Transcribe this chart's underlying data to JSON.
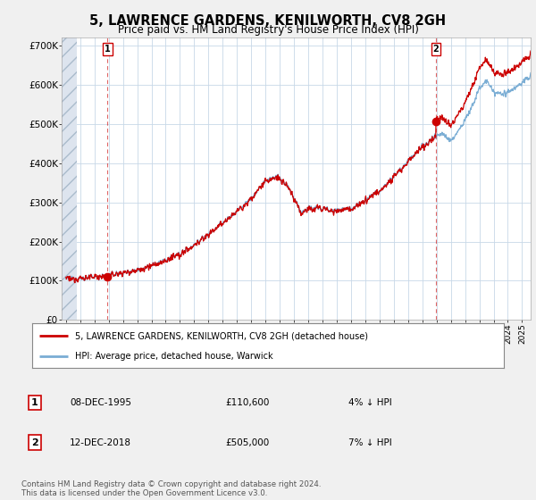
{
  "title": "5, LAWRENCE GARDENS, KENILWORTH, CV8 2GH",
  "subtitle": "Price paid vs. HM Land Registry's House Price Index (HPI)",
  "background_color": "#f0f0f0",
  "plot_bg_color": "#ffffff",
  "legend_label_red": "5, LAWRENCE GARDENS, KENILWORTH, CV8 2GH (detached house)",
  "legend_label_blue": "HPI: Average price, detached house, Warwick",
  "annotation1_label": "1",
  "annotation1_date": "08-DEC-1995",
  "annotation1_price": "£110,600",
  "annotation1_hpi": "4% ↓ HPI",
  "annotation2_label": "2",
  "annotation2_date": "12-DEC-2018",
  "annotation2_price": "£505,000",
  "annotation2_hpi": "7% ↓ HPI",
  "footer": "Contains HM Land Registry data © Crown copyright and database right 2024.\nThis data is licensed under the Open Government Licence v3.0.",
  "ylim": [
    0,
    720000
  ],
  "yticks": [
    0,
    100000,
    200000,
    300000,
    400000,
    500000,
    600000,
    700000
  ],
  "ytick_labels": [
    "£0",
    "£100K",
    "£200K",
    "£300K",
    "£400K",
    "£500K",
    "£600K",
    "£700K"
  ],
  "sale1_x": 1995.92,
  "sale1_y": 110600,
  "sale2_x": 2018.95,
  "sale2_y": 505000,
  "red_color": "#cc0000",
  "blue_color": "#7aadd4",
  "hatch_facecolor": "#dde4ee",
  "hatch_edgecolor": "#aabbcc",
  "xlim_left": 1992.7,
  "xlim_right": 2025.6,
  "hatch_end": 1993.75,
  "x_years_start": 1993,
  "x_years_end": 2025
}
